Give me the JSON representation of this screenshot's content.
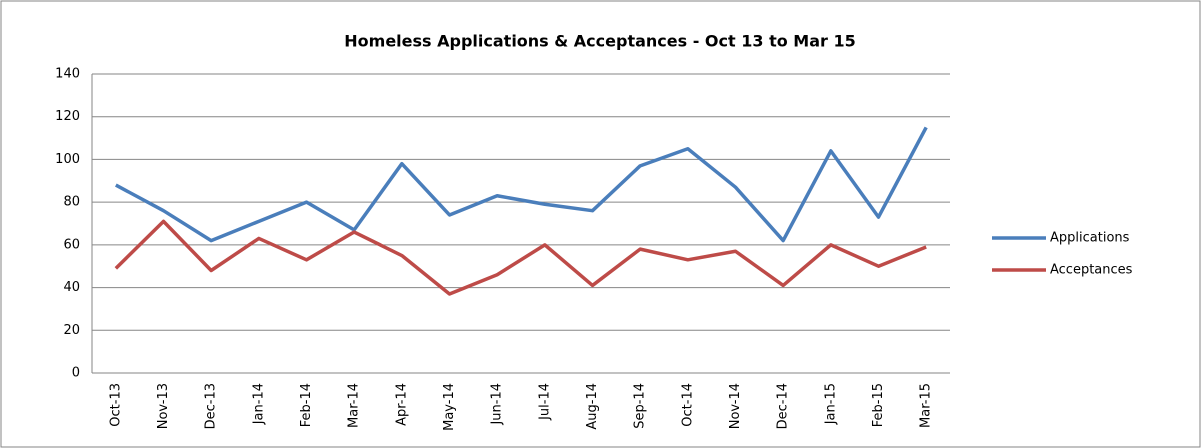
{
  "chart_data": {
    "type": "line",
    "title": "Homeless Applications & Acceptances - Oct 13 to Mar 15",
    "categories": [
      "Oct-13",
      "Nov-13",
      "Dec-13",
      "Jan-14",
      "Feb-14",
      "Mar-14",
      "Apr-14",
      "May-14",
      "Jun-14",
      "Jul-14",
      "Aug-14",
      "Sep-14",
      "Oct-14",
      "Nov-14",
      "Dec-14",
      "Jan-15",
      "Feb-15",
      "Mar-15"
    ],
    "series": [
      {
        "name": "Applications",
        "color": "#4a7ebb",
        "values": [
          88,
          76,
          62,
          71,
          80,
          67,
          98,
          74,
          83,
          79,
          76,
          97,
          105,
          87,
          62,
          104,
          73,
          115
        ]
      },
      {
        "name": "Acceptances",
        "color": "#be4b48",
        "values": [
          49,
          71,
          48,
          63,
          53,
          66,
          55,
          37,
          46,
          60,
          41,
          58,
          53,
          57,
          41,
          60,
          50,
          59
        ]
      }
    ],
    "ylim": [
      0,
      140
    ],
    "yticks": [
      0,
      20,
      40,
      60,
      80,
      100,
      120,
      140
    ],
    "grid": true,
    "legend": "right"
  }
}
